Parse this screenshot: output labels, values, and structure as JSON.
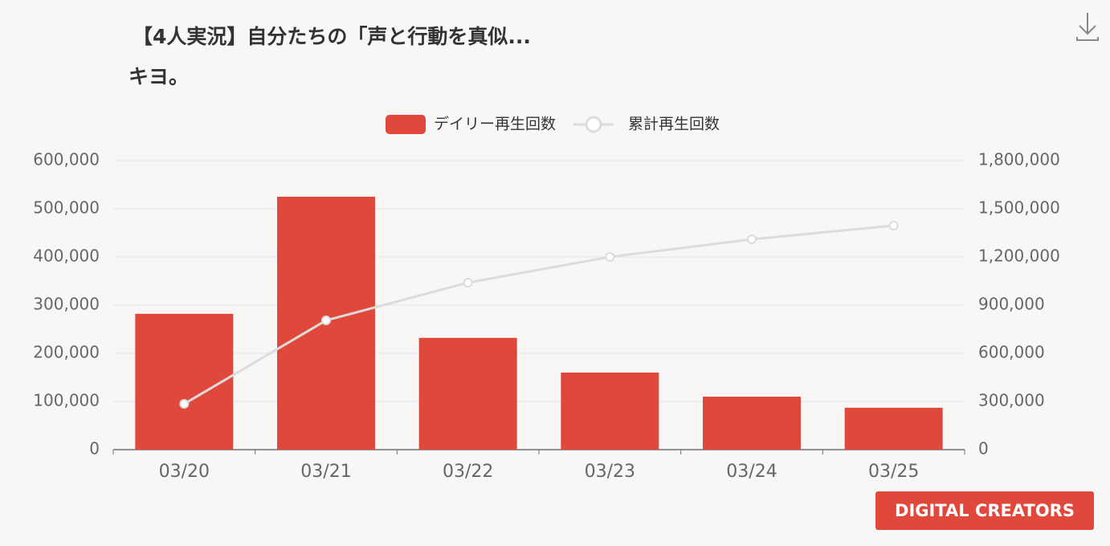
{
  "chart_data": {
    "type": "bar",
    "title": "【4人実況】自分たちの「声と行動を真似...",
    "subtitle": "キヨ。",
    "categories": [
      "03/20",
      "03/21",
      "03/22",
      "03/23",
      "03/24",
      "03/25"
    ],
    "series": [
      {
        "name": "デイリー再生回数",
        "type": "bar",
        "color": "#e0483c",
        "values": [
          282000,
          525000,
          232000,
          160000,
          110000,
          87000
        ]
      },
      {
        "name": "累計再生回数",
        "type": "line",
        "axis": "y2",
        "color": "#dcdcdc",
        "values": [
          285000,
          805000,
          1040000,
          1200000,
          1310000,
          1395000
        ]
      }
    ],
    "ylim": [
      0,
      600000
    ],
    "yticks": [
      0,
      {
        "value": 100000,
        "label": "100,000"
      },
      {
        "value": 200000,
        "label": "200,000"
      },
      {
        "value": 300000,
        "label": "300,000"
      },
      {
        "value": 400000,
        "label": "400,000"
      },
      {
        "value": 500000,
        "label": "500,000"
      },
      {
        "value": 600000,
        "label": "600,000"
      }
    ],
    "y2lim": [
      0,
      1800000
    ],
    "y2ticks": [
      0,
      {
        "value": 300000,
        "label": "300,000"
      },
      {
        "value": 600000,
        "label": "600,000"
      },
      {
        "value": 900000,
        "label": "900,000"
      },
      {
        "value": 1200000,
        "label": "1,200,000"
      },
      {
        "value": 1500000,
        "label": "1,500,000"
      },
      {
        "value": 1800000,
        "label": "1,800,000"
      }
    ],
    "grid": true,
    "legend": "top"
  },
  "branding": "DIGITAL CREATORS"
}
